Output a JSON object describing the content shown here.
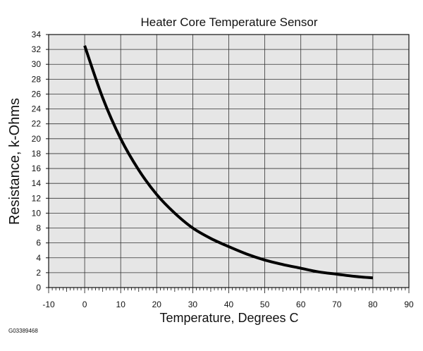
{
  "figure_id": "G03389468",
  "chart_data": {
    "type": "line",
    "title": "Heater Core Temperature Sensor",
    "xlabel": "Temperature, Degrees C",
    "ylabel": "Resistance, k-Ohms",
    "xlim": [
      -10,
      90
    ],
    "ylim": [
      0,
      34
    ],
    "xticks": [
      -10,
      0,
      10,
      20,
      30,
      40,
      50,
      60,
      70,
      80,
      90
    ],
    "yticks": [
      0,
      2,
      4,
      6,
      8,
      10,
      12,
      14,
      16,
      18,
      20,
      22,
      24,
      26,
      28,
      30,
      32,
      34
    ],
    "grid": true,
    "background_color": "#e6e6e6",
    "line_color": "#000000",
    "series": [
      {
        "x": [
          0,
          5,
          10,
          15,
          20,
          25,
          30,
          35,
          40,
          45,
          50,
          55,
          60,
          65,
          70,
          75,
          80
        ],
        "y": [
          32.5,
          25.5,
          20.0,
          15.8,
          12.5,
          10.0,
          8.0,
          6.6,
          5.5,
          4.5,
          3.7,
          3.1,
          2.6,
          2.1,
          1.8,
          1.5,
          1.3
        ]
      }
    ]
  }
}
